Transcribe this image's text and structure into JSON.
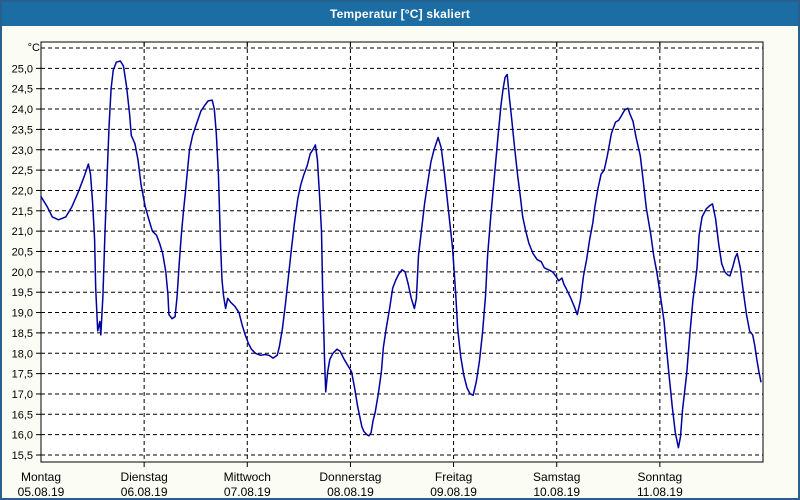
{
  "window": {
    "title": "Temperatur [°C] skaliert"
  },
  "colors": {
    "titlebar": "#1b6da4",
    "frame": "#27608a",
    "window_bg": "#fbfcf4",
    "plot_bg": "#ffffff",
    "line": "#0000a0",
    "grid": "#000000",
    "text": "#000000"
  },
  "chart_data": {
    "type": "line",
    "title": "Temperatur [°C] skaliert",
    "xlabel": "",
    "ylabel": "°C",
    "grid": true,
    "legend": "none",
    "y_axis": {
      "unit": "°C",
      "grid_min": 15.5,
      "grid_max": 25.5,
      "grid_step": 0.5,
      "ticks": [
        [
          25.0,
          "25,0"
        ],
        [
          24.5,
          "24,5"
        ],
        [
          24.0,
          "24,0"
        ],
        [
          23.5,
          "23,5"
        ],
        [
          23.0,
          "23,0"
        ],
        [
          22.5,
          "22,5"
        ],
        [
          22.0,
          "22,0"
        ],
        [
          21.5,
          "21,5"
        ],
        [
          21.0,
          "21,0"
        ],
        [
          20.5,
          "20,5"
        ],
        [
          20.0,
          "20,0"
        ],
        [
          19.5,
          "19,5"
        ],
        [
          19.0,
          "19,0"
        ],
        [
          18.5,
          "18,5"
        ],
        [
          18.0,
          "18,0"
        ],
        [
          17.5,
          "17,5"
        ],
        [
          17.0,
          "17,0"
        ],
        [
          16.5,
          "16,5"
        ],
        [
          16.0,
          "16,0"
        ],
        [
          15.5,
          "15,5"
        ]
      ]
    },
    "x_axis": {
      "days": [
        {
          "name": "Montag",
          "date": "05.08.19"
        },
        {
          "name": "Dienstag",
          "date": "06.08.19"
        },
        {
          "name": "Mittwoch",
          "date": "07.08.19"
        },
        {
          "name": "Donnerstag",
          "date": "08.08.19"
        },
        {
          "name": "Freitag",
          "date": "09.08.19"
        },
        {
          "name": "Samstag",
          "date": "10.08.19"
        },
        {
          "name": "Sonntag",
          "date": "11.08.19"
        }
      ]
    },
    "series": [
      {
        "name": "Temperatur",
        "color": "#0000a0",
        "points": [
          [
            0.0,
            21.85
          ],
          [
            0.06,
            21.6
          ],
          [
            0.11,
            21.35
          ],
          [
            0.17,
            21.28
          ],
          [
            0.24,
            21.35
          ],
          [
            0.3,
            21.6
          ],
          [
            0.36,
            21.95
          ],
          [
            0.42,
            22.35
          ],
          [
            0.46,
            22.65
          ],
          [
            0.48,
            22.4
          ],
          [
            0.5,
            21.7
          ],
          [
            0.52,
            20.8
          ],
          [
            0.53,
            19.6
          ],
          [
            0.55,
            18.55
          ],
          [
            0.57,
            18.78
          ],
          [
            0.58,
            18.45
          ],
          [
            0.6,
            19.4
          ],
          [
            0.62,
            20.9
          ],
          [
            0.64,
            22.3
          ],
          [
            0.66,
            23.6
          ],
          [
            0.68,
            24.5
          ],
          [
            0.7,
            24.95
          ],
          [
            0.73,
            25.15
          ],
          [
            0.77,
            25.18
          ],
          [
            0.8,
            25.05
          ],
          [
            0.83,
            24.55
          ],
          [
            0.86,
            23.85
          ],
          [
            0.875,
            23.35
          ],
          [
            0.91,
            23.15
          ],
          [
            0.94,
            22.75
          ],
          [
            0.97,
            22.15
          ],
          [
            1.01,
            21.6
          ],
          [
            1.05,
            21.25
          ],
          [
            1.08,
            21.0
          ],
          [
            1.12,
            20.9
          ],
          [
            1.15,
            20.7
          ],
          [
            1.18,
            20.45
          ],
          [
            1.21,
            20.0
          ],
          [
            1.23,
            19.45
          ],
          [
            1.24,
            18.95
          ],
          [
            1.27,
            18.85
          ],
          [
            1.3,
            18.9
          ],
          [
            1.32,
            19.4
          ],
          [
            1.34,
            20.2
          ],
          [
            1.36,
            20.9
          ],
          [
            1.38,
            21.45
          ],
          [
            1.4,
            21.95
          ],
          [
            1.42,
            22.5
          ],
          [
            1.44,
            23.0
          ],
          [
            1.47,
            23.35
          ],
          [
            1.51,
            23.65
          ],
          [
            1.55,
            23.95
          ],
          [
            1.59,
            24.1
          ],
          [
            1.62,
            24.2
          ],
          [
            1.66,
            24.22
          ],
          [
            1.68,
            24.0
          ],
          [
            1.7,
            23.4
          ],
          [
            1.72,
            22.4
          ],
          [
            1.73,
            21.6
          ],
          [
            1.74,
            20.7
          ],
          [
            1.755,
            19.8
          ],
          [
            1.77,
            19.4
          ],
          [
            1.79,
            19.1
          ],
          [
            1.81,
            19.35
          ],
          [
            1.84,
            19.25
          ],
          [
            1.88,
            19.15
          ],
          [
            1.92,
            19.0
          ],
          [
            1.95,
            18.7
          ],
          [
            1.98,
            18.45
          ],
          [
            2.01,
            18.25
          ],
          [
            2.04,
            18.1
          ],
          [
            2.08,
            18.0
          ],
          [
            2.13,
            17.95
          ],
          [
            2.17,
            17.97
          ],
          [
            2.21,
            17.95
          ],
          [
            2.25,
            17.88
          ],
          [
            2.29,
            17.95
          ],
          [
            2.31,
            18.15
          ],
          [
            2.34,
            18.6
          ],
          [
            2.37,
            19.2
          ],
          [
            2.4,
            19.9
          ],
          [
            2.43,
            20.6
          ],
          [
            2.46,
            21.25
          ],
          [
            2.49,
            21.8
          ],
          [
            2.52,
            22.15
          ],
          [
            2.55,
            22.4
          ],
          [
            2.58,
            22.6
          ],
          [
            2.61,
            22.9
          ],
          [
            2.635,
            23.0
          ],
          [
            2.66,
            23.12
          ],
          [
            2.68,
            22.75
          ],
          [
            2.7,
            21.9
          ],
          [
            2.72,
            21.0
          ],
          [
            2.73,
            19.6
          ],
          [
            2.75,
            17.8
          ],
          [
            2.76,
            17.05
          ],
          [
            2.78,
            17.55
          ],
          [
            2.8,
            17.85
          ],
          [
            2.83,
            18.0
          ],
          [
            2.87,
            18.1
          ],
          [
            2.9,
            18.05
          ],
          [
            2.94,
            17.85
          ],
          [
            2.97,
            17.72
          ],
          [
            3.01,
            17.55
          ],
          [
            3.04,
            17.15
          ],
          [
            3.07,
            16.7
          ],
          [
            3.09,
            16.45
          ],
          [
            3.11,
            16.2
          ],
          [
            3.13,
            16.08
          ],
          [
            3.16,
            16.0
          ],
          [
            3.18,
            15.97
          ],
          [
            3.2,
            16.05
          ],
          [
            3.22,
            16.35
          ],
          [
            3.24,
            16.55
          ],
          [
            3.27,
            17.0
          ],
          [
            3.3,
            17.55
          ],
          [
            3.32,
            18.15
          ],
          [
            3.35,
            18.65
          ],
          [
            3.38,
            19.1
          ],
          [
            3.41,
            19.6
          ],
          [
            3.44,
            19.8
          ],
          [
            3.47,
            19.95
          ],
          [
            3.5,
            20.05
          ],
          [
            3.53,
            20.0
          ],
          [
            3.56,
            19.7
          ],
          [
            3.59,
            19.35
          ],
          [
            3.62,
            19.1
          ],
          [
            3.64,
            19.35
          ],
          [
            3.66,
            20.4
          ],
          [
            3.69,
            21.05
          ],
          [
            3.72,
            21.7
          ],
          [
            3.75,
            22.2
          ],
          [
            3.78,
            22.7
          ],
          [
            3.81,
            23.0
          ],
          [
            3.85,
            23.3
          ],
          [
            3.88,
            23.05
          ],
          [
            3.91,
            22.45
          ],
          [
            3.94,
            21.75
          ],
          [
            3.97,
            21.05
          ],
          [
            3.99,
            20.6
          ],
          [
            4.02,
            19.5
          ],
          [
            4.04,
            18.6
          ],
          [
            4.07,
            17.9
          ],
          [
            4.1,
            17.45
          ],
          [
            4.13,
            17.15
          ],
          [
            4.16,
            17.0
          ],
          [
            4.19,
            16.97
          ],
          [
            4.22,
            17.3
          ],
          [
            4.25,
            17.8
          ],
          [
            4.28,
            18.5
          ],
          [
            4.31,
            19.4
          ],
          [
            4.33,
            20.4
          ],
          [
            4.36,
            21.35
          ],
          [
            4.4,
            22.45
          ],
          [
            4.43,
            23.3
          ],
          [
            4.46,
            24.1
          ],
          [
            4.48,
            24.5
          ],
          [
            4.5,
            24.78
          ],
          [
            4.52,
            24.85
          ],
          [
            4.54,
            24.3
          ],
          [
            4.56,
            23.85
          ],
          [
            4.59,
            23.1
          ],
          [
            4.62,
            22.4
          ],
          [
            4.65,
            21.8
          ],
          [
            4.67,
            21.35
          ],
          [
            4.7,
            21.0
          ],
          [
            4.73,
            20.7
          ],
          [
            4.77,
            20.45
          ],
          [
            4.81,
            20.3
          ],
          [
            4.85,
            20.25
          ],
          [
            4.88,
            20.1
          ],
          [
            4.92,
            20.05
          ],
          [
            4.96,
            20.0
          ],
          [
            4.99,
            19.9
          ],
          [
            5.02,
            19.78
          ],
          [
            5.05,
            19.85
          ],
          [
            5.07,
            19.7
          ],
          [
            5.1,
            19.55
          ],
          [
            5.14,
            19.33
          ],
          [
            5.17,
            19.15
          ],
          [
            5.2,
            18.95
          ],
          [
            5.23,
            19.3
          ],
          [
            5.26,
            19.9
          ],
          [
            5.29,
            20.3
          ],
          [
            5.32,
            20.8
          ],
          [
            5.35,
            21.2
          ],
          [
            5.37,
            21.6
          ],
          [
            5.4,
            22.05
          ],
          [
            5.43,
            22.4
          ],
          [
            5.46,
            22.5
          ],
          [
            5.49,
            22.85
          ],
          [
            5.53,
            23.4
          ],
          [
            5.57,
            23.68
          ],
          [
            5.6,
            23.72
          ],
          [
            5.63,
            23.85
          ],
          [
            5.66,
            23.98
          ],
          [
            5.69,
            24.02
          ],
          [
            5.71,
            23.88
          ],
          [
            5.74,
            23.7
          ],
          [
            5.77,
            23.3
          ],
          [
            5.81,
            22.85
          ],
          [
            5.84,
            22.2
          ],
          [
            5.87,
            21.55
          ],
          [
            5.91,
            20.95
          ],
          [
            5.94,
            20.4
          ],
          [
            5.97,
            20.0
          ],
          [
            6.0,
            19.5
          ],
          [
            6.02,
            19.15
          ],
          [
            6.04,
            18.8
          ],
          [
            6.06,
            18.25
          ],
          [
            6.09,
            17.45
          ],
          [
            6.12,
            16.7
          ],
          [
            6.15,
            16.05
          ],
          [
            6.18,
            15.68
          ],
          [
            6.2,
            15.95
          ],
          [
            6.22,
            16.6
          ],
          [
            6.26,
            17.5
          ],
          [
            6.29,
            18.45
          ],
          [
            6.32,
            19.3
          ],
          [
            6.36,
            20.1
          ],
          [
            6.38,
            20.9
          ],
          [
            6.41,
            21.35
          ],
          [
            6.45,
            21.55
          ],
          [
            6.48,
            21.62
          ],
          [
            6.51,
            21.67
          ],
          [
            6.54,
            21.3
          ],
          [
            6.57,
            20.7
          ],
          [
            6.6,
            20.2
          ],
          [
            6.63,
            20.0
          ],
          [
            6.66,
            19.92
          ],
          [
            6.68,
            19.9
          ],
          [
            6.71,
            20.15
          ],
          [
            6.73,
            20.35
          ],
          [
            6.75,
            20.45
          ],
          [
            6.78,
            20.1
          ],
          [
            6.81,
            19.5
          ],
          [
            6.84,
            18.95
          ],
          [
            6.87,
            18.55
          ],
          [
            6.9,
            18.45
          ],
          [
            6.92,
            18.2
          ],
          [
            6.94,
            17.85
          ],
          [
            6.96,
            17.55
          ],
          [
            6.98,
            17.3
          ]
        ]
      }
    ]
  }
}
